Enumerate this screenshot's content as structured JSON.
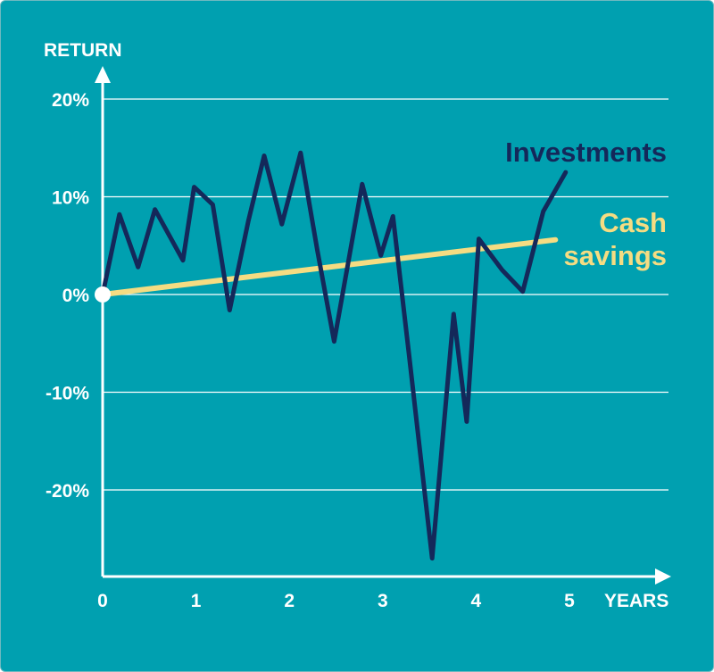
{
  "chart_data": {
    "type": "line",
    "ylabel": "RETURN",
    "xlabel": "YEARS",
    "xlim": [
      0,
      5
    ],
    "ylim": [
      -27,
      20
    ],
    "x_ticks": [
      "0",
      "1",
      "2",
      "3",
      "4",
      "5"
    ],
    "y_ticks": [
      {
        "value": 20,
        "label": "20%"
      },
      {
        "value": 10,
        "label": "10%"
      },
      {
        "value": 0,
        "label": "0%"
      },
      {
        "value": -10,
        "label": "-10%"
      },
      {
        "value": -20,
        "label": "-20%"
      }
    ],
    "grid": true,
    "series": [
      {
        "name": "Investments",
        "color": "#14285a",
        "points": [
          [
            0.0,
            0.0
          ],
          [
            0.18,
            8.2
          ],
          [
            0.38,
            2.8
          ],
          [
            0.56,
            8.7
          ],
          [
            0.86,
            3.5
          ],
          [
            0.98,
            11.0
          ],
          [
            1.18,
            9.2
          ],
          [
            1.36,
            -1.6
          ],
          [
            1.56,
            7.5
          ],
          [
            1.73,
            14.2
          ],
          [
            1.92,
            7.2
          ],
          [
            2.12,
            14.5
          ],
          [
            2.3,
            4.5
          ],
          [
            2.48,
            -4.8
          ],
          [
            2.78,
            11.3
          ],
          [
            2.98,
            4.0
          ],
          [
            3.11,
            8.0
          ],
          [
            3.28,
            -6.0
          ],
          [
            3.53,
            -27.0
          ],
          [
            3.76,
            -2.0
          ],
          [
            3.9,
            -13.0
          ],
          [
            4.03,
            5.7
          ],
          [
            4.28,
            2.5
          ],
          [
            4.5,
            0.3
          ],
          [
            4.72,
            8.5
          ],
          [
            4.96,
            12.5
          ]
        ]
      },
      {
        "name": "Cash savings",
        "color": "#f5dc82",
        "points": [
          [
            0.0,
            0.0
          ],
          [
            4.85,
            5.6
          ]
        ]
      }
    ],
    "series_labels": {
      "investments": "Investments",
      "cash_line1": "Cash",
      "cash_line2": "savings"
    }
  }
}
